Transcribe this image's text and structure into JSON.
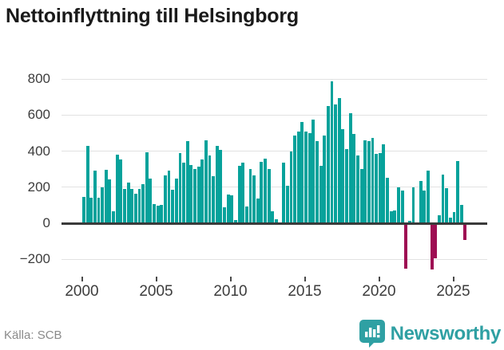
{
  "title": "Nettoinflyttning till Helsingborg",
  "footer": {
    "source": "Källa: SCB",
    "brand": "Newsworthy"
  },
  "colors": {
    "positive": "#07a29b",
    "negative": "#9e0e53",
    "brand": "#2fa0a3",
    "grid": "#e2e2e2",
    "zero_line": "#3a3a3a",
    "axis_text": "#3d3d3d",
    "tick_mark": "#4a4a4a",
    "title_text": "#1a1a1a",
    "source_text": "#8a8a8a",
    "background": "#ffffff"
  },
  "y_axis": {
    "ticks": [
      {
        "value": 800,
        "label": "800"
      },
      {
        "value": 600,
        "label": "600"
      },
      {
        "value": 400,
        "label": "400"
      },
      {
        "value": 200,
        "label": "200"
      },
      {
        "value": 0,
        "label": "0"
      },
      {
        "value": -200,
        "label": "−200"
      }
    ]
  },
  "x_axis": {
    "ticks": [
      {
        "year": 2000,
        "label": "2000"
      },
      {
        "year": 2005,
        "label": "2005"
      },
      {
        "year": 2010,
        "label": "2010"
      },
      {
        "year": 2015,
        "label": "2015"
      },
      {
        "year": 2020,
        "label": "2020"
      },
      {
        "year": 2025,
        "label": "2025"
      }
    ]
  },
  "chart_data": {
    "type": "bar",
    "title": "Nettoinflyttning till Helsingborg",
    "frequency": "quarterly",
    "start_period": "2000 Q1",
    "end_period": "2025 Q4",
    "ylim": [
      -300,
      870
    ],
    "grid": "horizontal",
    "legend": "none",
    "series": [
      {
        "name": "Nettoinflyttning",
        "values": [
          145,
          430,
          140,
          290,
          140,
          200,
          295,
          245,
          65,
          380,
          355,
          190,
          225,
          190,
          165,
          192,
          215,
          395,
          250,
          105,
          97,
          100,
          265,
          293,
          188,
          250,
          390,
          335,
          455,
          325,
          300,
          315,
          355,
          460,
          375,
          260,
          430,
          405,
          87,
          160,
          157,
          17,
          320,
          338,
          92,
          301,
          265,
          138,
          340,
          358,
          299,
          65,
          22,
          0,
          335,
          210,
          397,
          486,
          509,
          561,
          508,
          498,
          577,
          455,
          317,
          486,
          649,
          789,
          659,
          696,
          520,
          411,
          609,
          494,
          375,
          299,
          462,
          455,
          472,
          385,
          390,
          436,
          253,
          65,
          71,
          198,
          183,
          -250,
          15,
          198,
          0,
          235,
          183,
          293,
          -256,
          -196,
          43,
          272,
          194,
          33,
          61,
          347,
          100,
          -95
        ]
      }
    ]
  }
}
